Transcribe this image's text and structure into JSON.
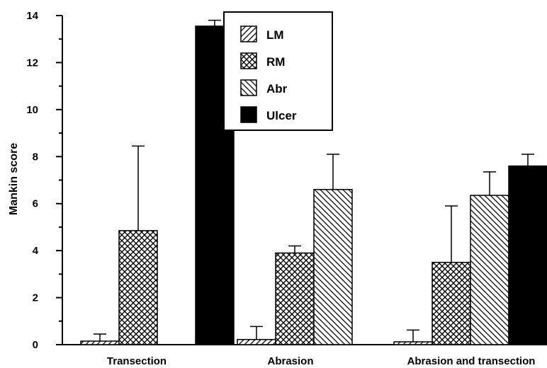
{
  "chart_data": {
    "type": "bar",
    "title": "",
    "xlabel": "",
    "ylabel": "Mankin score",
    "ylim": [
      0,
      14
    ],
    "yticks": [
      0,
      2,
      4,
      6,
      8,
      10,
      12,
      14
    ],
    "categories": [
      "Transection",
      "Abrasion",
      "Abrasion and transection"
    ],
    "series": [
      {
        "name": "LM",
        "pattern": "diagonal-hatch",
        "values": [
          0.15,
          0.22,
          0.12
        ],
        "errors": [
          0.3,
          0.55,
          0.5
        ]
      },
      {
        "name": "RM",
        "pattern": "crosshatch",
        "values": [
          4.85,
          3.9,
          3.5
        ],
        "errors": [
          3.6,
          0.3,
          2.4
        ]
      },
      {
        "name": "Abr",
        "pattern": "reverse-diagonal-hatch",
        "values": [
          null,
          6.6,
          6.35
        ],
        "errors": [
          null,
          1.5,
          1.0
        ]
      },
      {
        "name": "Ulcer",
        "pattern": "solid-black",
        "values": [
          13.55,
          null,
          7.6
        ],
        "errors": [
          0.25,
          null,
          0.5
        ]
      }
    ],
    "legend": {
      "position": "top-center",
      "entries": [
        "LM",
        "RM",
        "Abr",
        "Ulcer"
      ]
    },
    "grid": false,
    "bar_color": "#000000",
    "background": "#ffffff"
  }
}
